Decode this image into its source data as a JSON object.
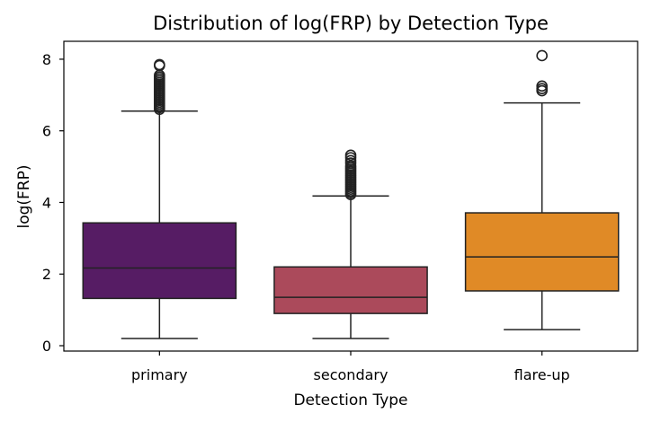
{
  "chart_data": {
    "type": "box",
    "title": "Distribution of log(FRP) by Detection Type",
    "xlabel": "Detection Type",
    "ylabel": "log(FRP)",
    "ylim": [
      -0.15,
      8.5
    ],
    "yticks": [
      0,
      2,
      4,
      6,
      8
    ],
    "ytick_labels": [
      "0",
      "2",
      "4",
      "6",
      "8"
    ],
    "grid": false,
    "categories": [
      "primary",
      "secondary",
      "flare-up"
    ],
    "colors": [
      "#561c64",
      "#ab4a5b",
      "#e08a26"
    ],
    "boxes": [
      {
        "category": "primary",
        "whisker_low": 0.2,
        "q1": 1.32,
        "median": 2.17,
        "q3": 3.43,
        "whisker_high": 6.55,
        "outliers": [
          6.6,
          6.65,
          6.7,
          6.75,
          6.8,
          6.85,
          6.9,
          6.95,
          7.0,
          7.05,
          7.1,
          7.15,
          7.2,
          7.25,
          7.3,
          7.35,
          7.4,
          7.45,
          7.5,
          7.55,
          7.82,
          7.85
        ]
      },
      {
        "category": "secondary",
        "whisker_low": 0.2,
        "q1": 0.9,
        "median": 1.35,
        "q3": 2.2,
        "whisker_high": 4.18,
        "outliers": [
          4.22,
          4.27,
          4.32,
          4.37,
          4.42,
          4.47,
          4.52,
          4.57,
          4.62,
          4.67,
          4.72,
          4.77,
          4.82,
          4.87,
          4.92,
          4.97,
          5.02,
          5.1,
          5.17,
          5.25,
          5.32
        ]
      },
      {
        "category": "flare-up",
        "whisker_low": 0.45,
        "q1": 1.53,
        "median": 2.48,
        "q3": 3.71,
        "whisker_high": 6.78,
        "outliers": [
          7.12,
          7.18,
          7.25,
          8.1
        ]
      }
    ]
  }
}
